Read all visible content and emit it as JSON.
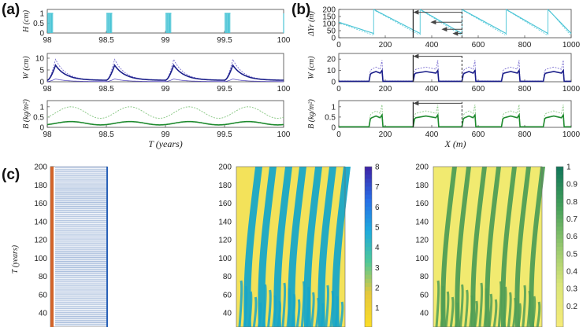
{
  "panels": {
    "a": "(a)",
    "b": "(b)",
    "c": "(c)"
  },
  "a": {
    "xticks": [
      "98",
      "98.5",
      "99",
      "99.5",
      "100"
    ],
    "xlabel": "T (years)",
    "xrange": [
      98,
      100
    ],
    "H": {
      "ylabel": "H (cm)",
      "yticks": [
        "0",
        "0.5",
        "1"
      ],
      "ylim": [
        0,
        1.2
      ]
    },
    "W": {
      "ylabel": "W (cm)",
      "yticks": [
        "0",
        "5",
        "10"
      ],
      "ylim": [
        0,
        12
      ]
    },
    "B": {
      "ylabel": "B (kg/m²)",
      "yticks": [
        "0",
        "0.5",
        "1"
      ],
      "ylim": [
        0,
        1.3
      ]
    }
  },
  "b": {
    "xticks": [
      "0",
      "200",
      "400",
      "600",
      "800",
      "1000"
    ],
    "xlabel": "X (m)",
    "DY": {
      "ylabel": "ΔYr (m)",
      "yticks": [
        "0",
        "50",
        "100",
        "150",
        "200"
      ],
      "ylim": [
        0,
        200
      ]
    },
    "W": {
      "ylabel": "W (cm)",
      "yticks": [
        "0",
        "10",
        "20"
      ],
      "ylim": [
        0,
        25
      ]
    },
    "B": {
      "ylabel": "B (kg/m²)",
      "yticks": [
        "0",
        "0.5",
        "1"
      ],
      "ylim": [
        0,
        1.3
      ]
    }
  },
  "c": {
    "ylabel": "T (years)",
    "yticks": [
      "200",
      "180",
      "160",
      "140",
      "120",
      "100",
      "80",
      "60",
      "40"
    ],
    "cb1": {
      "ticks": [
        "8",
        "7",
        "6",
        "5",
        "4",
        "3",
        "2",
        "1"
      ],
      "range": [
        1,
        8
      ]
    },
    "cb2": {
      "ticks": [
        "1",
        "0.9",
        "0.8",
        "0.7",
        "0.6",
        "0.5",
        "0.4",
        "0.3",
        "0.2"
      ],
      "range": [
        0.2,
        1
      ]
    }
  },
  "colors": {
    "cyan": "#4bc5d6",
    "navy": "#1b1f8a",
    "violet": "#7b6fd0",
    "green": "#1e8a2e",
    "lightgreen": "#8fca8a",
    "yellow": "#f3e25a",
    "teal": "#18a6c8",
    "orange": "#d2642a",
    "blue": "#2a62b8"
  },
  "chart_data": [
    {
      "type": "line",
      "panel": "a-H",
      "xlabel": "T (years)",
      "ylabel": "H (cm)",
      "x_range": [
        98,
        100
      ],
      "ylim": [
        0,
        1.2
      ],
      "series": [
        {
          "values_description": "rain pulses of 1 cm at T≈98.0–98.05, 98.45–98.5, 98.95–99.0, 99.45–99.5, 100"
        }
      ]
    },
    {
      "type": "line",
      "panel": "a-W",
      "xlabel": "T (years)",
      "ylabel": "W (cm)",
      "ylim": [
        0,
        12
      ],
      "series": [
        {
          "name": "",
          "peaks": [
            {
              "x": 98.07,
              "y": 7
            },
            {
              "x": 98.57,
              "y": 7
            },
            {
              "x": 99.07,
              "y": 7
            },
            {
              "x": 99.57,
              "y": 7
            }
          ]
        },
        {
          "name": "",
          "peaks": [
            {
              "x": 98.07,
              "y": 9
            },
            {
              "x": 98.57,
              "y": 9
            },
            {
              "x": 99.07,
              "y": 9
            },
            {
              "x": 99.57,
              "y": 9
            }
          ]
        }
      ]
    },
    {
      "type": "line",
      "panel": "a-B",
      "xlabel": "T (years)",
      "ylabel": "B (kg/m²)",
      "ylim": [
        0,
        1.3
      ],
      "series": [
        {
          "name": "",
          "peaks": [
            {
              "x": 98.2,
              "y": 0.3
            },
            {
              "x": 98.7,
              "y": 0.3
            },
            {
              "x": 99.2,
              "y": 0.3
            },
            {
              "x": 99.7,
              "y": 0.3
            }
          ]
        },
        {
          "name": "",
          "peaks": [
            {
              "x": 98.2,
              "y": 1.0
            },
            {
              "x": 98.7,
              "y": 1.0
            },
            {
              "x": 99.2,
              "y": 1.0
            },
            {
              "x": 99.7,
              "y": 1.0
            }
          ]
        }
      ]
    },
    {
      "type": "line",
      "panel": "b-DY",
      "xlabel": "X (m)",
      "ylabel": "ΔYr (m)",
      "ylim": [
        0,
        200
      ],
      "series": [
        {
          "name": "",
          "sawtooth_starts": [
            0,
            150,
            350,
            530,
            720,
            900
          ],
          "high": 200,
          "low": 20
        }
      ]
    },
    {
      "type": "line",
      "panel": "b-W",
      "xlabel": "X (m)",
      "ylabel": "W (cm)",
      "ylim": [
        0,
        25
      ],
      "series": [
        {
          "name": "",
          "pulses": [
            [
              130,
              190,
              10
            ],
            [
              320,
              430,
              10
            ],
            [
              530,
              590,
              10
            ],
            [
              700,
              780,
              10
            ],
            [
              880,
              970,
              10
            ]
          ]
        }
      ]
    },
    {
      "type": "line",
      "panel": "b-B",
      "xlabel": "X (m)",
      "ylabel": "B (kg/m²)",
      "ylim": [
        0,
        1.3
      ],
      "series": [
        {
          "name": "",
          "pulses": [
            [
              130,
              190,
              0.6
            ],
            [
              320,
              430,
              0.6
            ],
            [
              530,
              590,
              0.6
            ],
            [
              700,
              780,
              0.6
            ],
            [
              880,
              970,
              0.6
            ]
          ]
        }
      ]
    },
    {
      "type": "heatmap",
      "panel": "c-W",
      "ylabel": "T (years)",
      "ylim": [
        30,
        200
      ],
      "colorbar": [
        1,
        8
      ]
    },
    {
      "type": "heatmap",
      "panel": "c-B",
      "ylabel": "T (years)",
      "ylim": [
        30,
        200
      ],
      "colorbar": [
        0.2,
        1
      ]
    }
  ]
}
